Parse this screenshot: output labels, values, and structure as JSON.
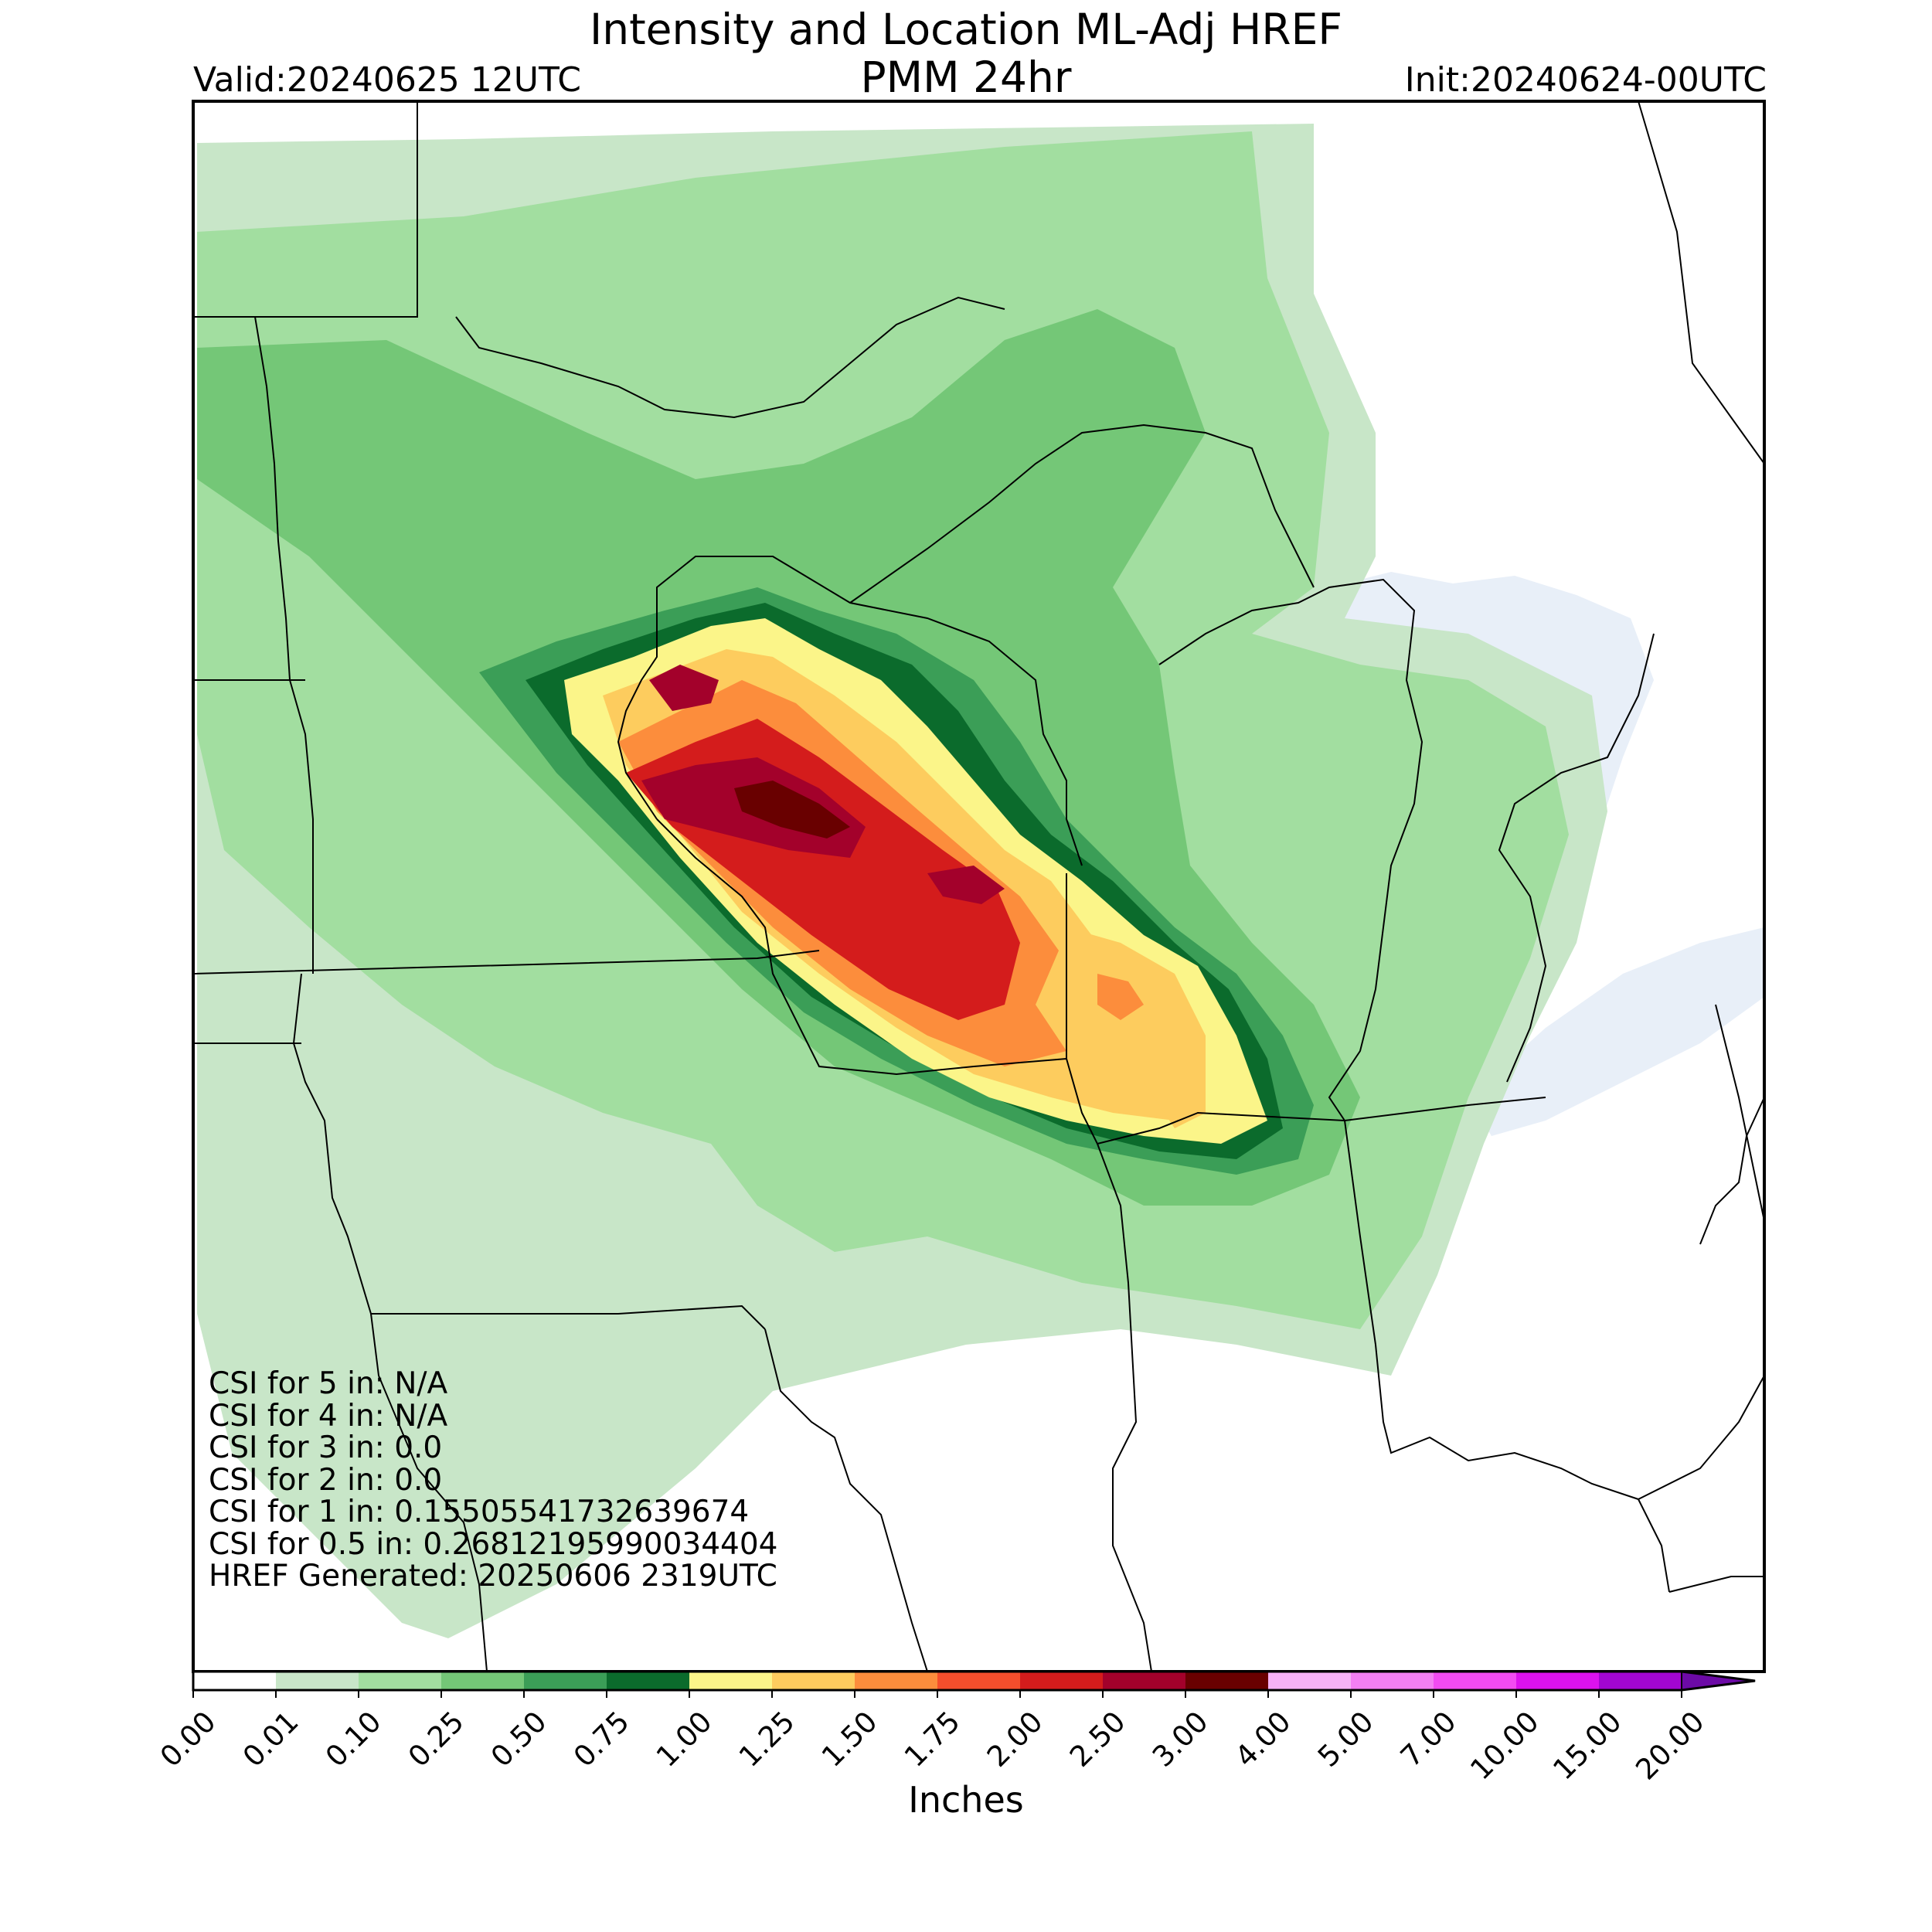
{
  "title_line1": "Intensity and Location ML-Adj HREF",
  "title_line2": "PMM 24hr",
  "valid": "Valid:20240625 12UTC",
  "init": "Init:20240624-00UTC",
  "stats": [
    "CSI for 5 in: N/A",
    "CSI for 4 in: N/A",
    "CSI for 3 in: 0.0",
    "CSI for 2 in: 0.0",
    "CSI for 1 in: 0.15505541732639674",
    "CSI for 0.5 in: 0.26812195990034404",
    "HREF Generated: 20250606 2319UTC"
  ],
  "colorbar": {
    "label": "Inches",
    "ticks": [
      "0.00",
      "0.01",
      "0.10",
      "0.25",
      "0.50",
      "0.75",
      "1.00",
      "1.25",
      "1.50",
      "1.75",
      "2.00",
      "2.50",
      "3.00",
      "4.00",
      "5.00",
      "7.00",
      "10.00",
      "15.00",
      "20.00"
    ],
    "colors": [
      "#ffffff",
      "#c8e6c8",
      "#a2dea0",
      "#74c777",
      "#3b9e57",
      "#0b6b2c",
      "#fbf589",
      "#fdcc5e",
      "#fc8d3c",
      "#f54e2c",
      "#d41c1c",
      "#a3012b",
      "#690000",
      "#f7b2f7",
      "#f37ff3",
      "#f24bf2",
      "#dc12ee",
      "#a206d1",
      "#6c0aa6"
    ],
    "extend": "max"
  },
  "colors": {
    "water": "#e8eff8",
    "border": "#000000"
  }
}
